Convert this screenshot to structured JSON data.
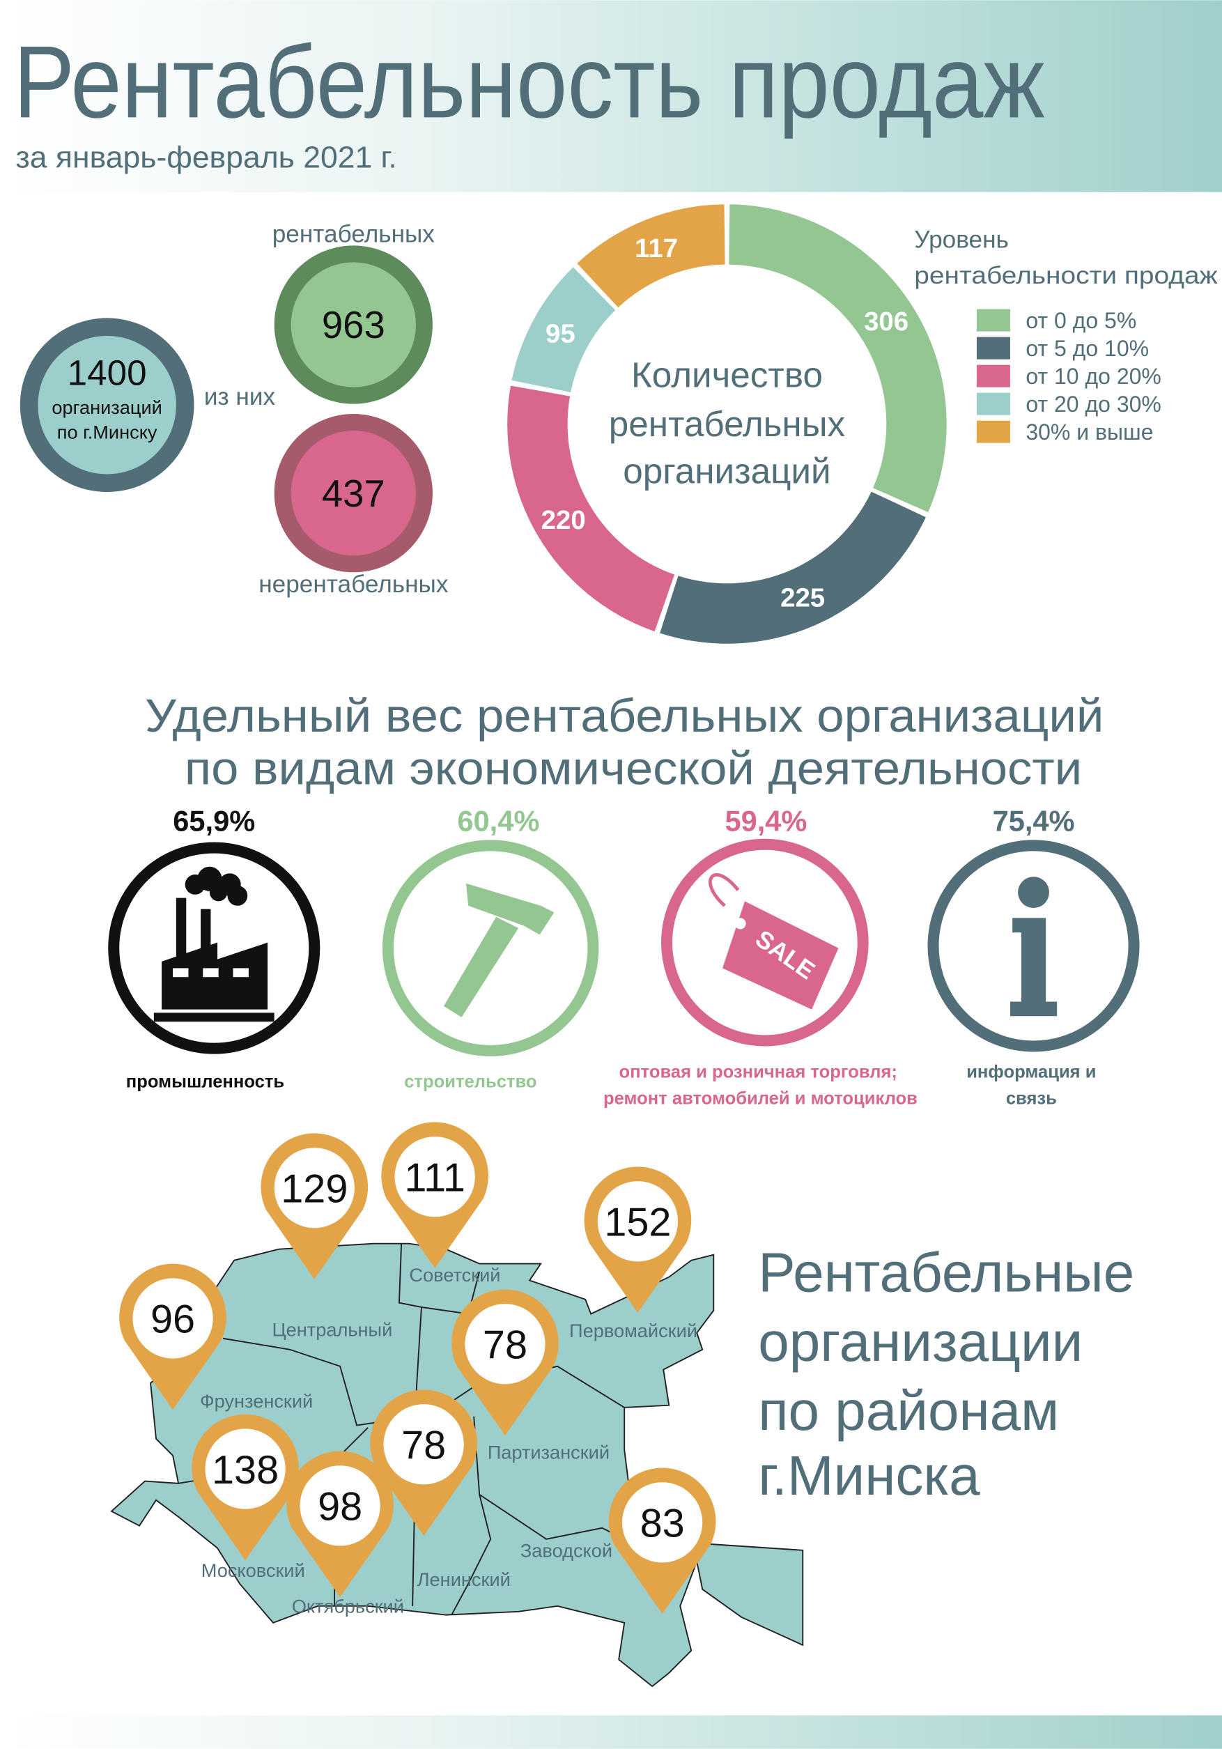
{
  "header": {
    "title": "Рентабельность продаж",
    "subtitle": "за январь-февраль 2021 г."
  },
  "summary": {
    "total_value": "1400",
    "total_label_1": "организаций",
    "total_label_2": "по г.Минску",
    "of_them": "из них",
    "profitable_label": "рентабельных",
    "profitable_value": "963",
    "unprofitable_label": "нерентабельных",
    "unprofitable_value": "437"
  },
  "chart_data": {
    "type": "pie",
    "title": "Количество рентабельных организаций",
    "center_lines": [
      "Количество",
      "рентабельных",
      "организаций"
    ],
    "legend_title_1": "Уровень",
    "legend_title_2": "рентабельности продаж",
    "legend_placement": "right",
    "categories": [
      "от 0 до 5%",
      "от 5 до 10%",
      "от 10 до 20%",
      "от 20 до 30%",
      "30% и выше"
    ],
    "values": [
      306,
      225,
      220,
      95,
      117
    ],
    "labels": [
      "306",
      "225",
      "220",
      "95",
      "117"
    ],
    "colors": [
      "#94c692",
      "#516e79",
      "#d9668c",
      "#9ccfcb",
      "#e2a447"
    ]
  },
  "activity": {
    "title_1": "Удельный вес рентабельных организаций",
    "title_2": "по видам экономической деятельности",
    "items": [
      {
        "percent": "65,9%",
        "label_1": "промышленность",
        "label_2": "",
        "color": "#111111",
        "icon": "factory-icon"
      },
      {
        "percent": "60,4%",
        "label_1": "строительство",
        "label_2": "",
        "color": "#94c692",
        "icon": "hammer-icon"
      },
      {
        "percent": "59,4%",
        "label_1": "оптовая и розничная торговля;",
        "label_2": "ремонт автомобилей и мотоциклов",
        "color": "#d9668c",
        "icon": "sale-tag-icon"
      },
      {
        "percent": "75,4%",
        "label_1": "информация и",
        "label_2": "связь",
        "color": "#516e79",
        "icon": "info-icon"
      }
    ],
    "sale_text": "SALE"
  },
  "map": {
    "title_lines": [
      "Рентабельные",
      "организации",
      "по районам",
      "г.Минска"
    ],
    "districts": [
      {
        "name": "Центральный",
        "value": "129"
      },
      {
        "name": "Советский",
        "value": "111"
      },
      {
        "name": "Первомайский",
        "value": "152"
      },
      {
        "name": "Фрунзенский",
        "value": "96"
      },
      {
        "name": "Партизанский",
        "value": "78"
      },
      {
        "name": "Ленинский",
        "value": "78"
      },
      {
        "name": "Московский",
        "value": "138"
      },
      {
        "name": "Октябрьский",
        "value": "98"
      },
      {
        "name": "Заводской",
        "value": "83"
      }
    ]
  },
  "colors": {
    "accent": "#516e79",
    "teal": "#9ccfcb",
    "orange": "#e2a447"
  }
}
